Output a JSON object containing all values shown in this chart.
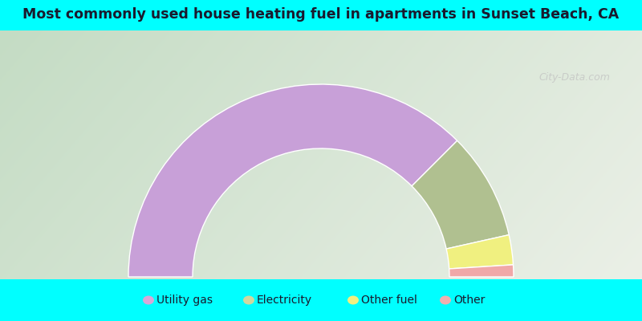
{
  "title": "Most commonly used house heating fuel in apartments in Sunset Beach, CA",
  "title_color": "#1a1a2e",
  "background_cyan": "#00ffff",
  "segments": [
    {
      "label": "Utility gas",
      "value": 75,
      "color": "#c8a0d8"
    },
    {
      "label": "Electricity",
      "value": 18,
      "color": "#b0c090"
    },
    {
      "label": "Other fuel",
      "value": 5,
      "color": "#f0f080"
    },
    {
      "label": "Other",
      "value": 2,
      "color": "#f0a8a8"
    }
  ],
  "legend_colors": [
    "#d8a8d8",
    "#d0d8a0",
    "#f0f080",
    "#f0b0b0"
  ],
  "legend_labels": [
    "Utility gas",
    "Electricity",
    "Other fuel",
    "Other"
  ],
  "figsize": [
    8,
    4
  ],
  "dpi": 100,
  "watermark": "City-Data.com"
}
